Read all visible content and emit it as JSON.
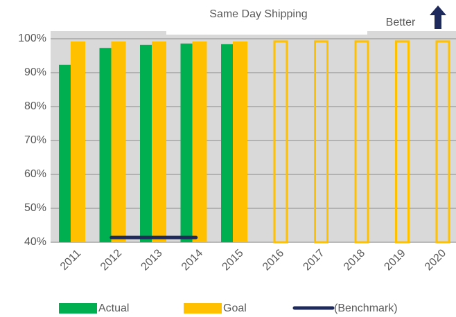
{
  "chart_data": {
    "type": "bar",
    "title": "Same Day Shipping",
    "annotation": "Better",
    "categories": [
      "2011",
      "2012",
      "2013",
      "2014",
      "2015",
      "2016",
      "2017",
      "2018",
      "2019",
      "2020"
    ],
    "series": [
      {
        "name": "Actual",
        "color": "#00b050",
        "values": [
          92.3,
          97.3,
          98.2,
          98.6,
          98.4,
          null,
          null,
          null,
          null,
          null
        ]
      },
      {
        "name": "Goal",
        "color": "#ffc000",
        "values": [
          99.2,
          99.2,
          99.2,
          99.2,
          99.2,
          99.2,
          99.2,
          99.2,
          99.2,
          99.2
        ]
      },
      {
        "name": "(Benchmark)",
        "color": "#1f2a5c",
        "type": "line",
        "values": [
          null,
          41.4,
          41.4,
          41.4,
          null,
          null,
          null,
          null,
          null,
          null
        ]
      }
    ],
    "ylim": [
      40,
      100
    ],
    "yticks": [
      {
        "value": 40,
        "label": "40%"
      },
      {
        "value": 50,
        "label": "50%"
      },
      {
        "value": 60,
        "label": "60%"
      },
      {
        "value": 70,
        "label": "70%"
      },
      {
        "value": 80,
        "label": "80%"
      },
      {
        "value": 90,
        "label": "90%"
      },
      {
        "value": 100,
        "label": "100%"
      }
    ],
    "grid": true,
    "legend": "bottom"
  }
}
